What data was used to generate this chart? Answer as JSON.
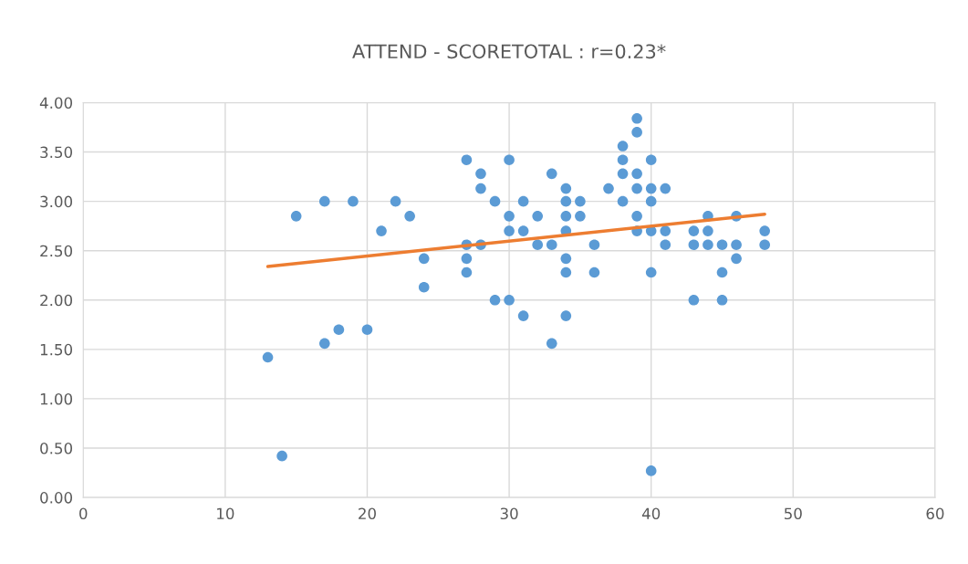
{
  "chart_data": {
    "type": "scatter",
    "title": "ATTEND - SCORETOTAL : r=0.23*",
    "xlim": [
      0,
      60
    ],
    "xticks": [
      0,
      10,
      20,
      30,
      40,
      50,
      60
    ],
    "ylim": [
      0,
      4
    ],
    "yticks": [
      {
        "value": 0,
        "label": "0.00"
      },
      {
        "value": 0.5,
        "label": "0.50"
      },
      {
        "value": 1,
        "label": "1.00"
      },
      {
        "value": 1.5,
        "label": "1.50"
      },
      {
        "value": 2,
        "label": "2.00"
      },
      {
        "value": 2.5,
        "label": "2.50"
      },
      {
        "value": 3,
        "label": "3.00"
      },
      {
        "value": 3.5,
        "label": "3.50"
      },
      {
        "value": 4,
        "label": "4.00"
      }
    ],
    "grid": true,
    "legend": false,
    "series": [
      {
        "marker": "circle",
        "color": "#5b9bd5",
        "x": [
          13,
          14,
          15,
          17,
          17,
          18,
          19,
          20,
          21,
          22,
          23,
          24,
          24,
          27,
          27,
          27,
          27,
          28,
          28,
          28,
          29,
          29,
          30,
          30,
          30,
          30,
          31,
          31,
          31,
          32,
          32,
          33,
          33,
          33,
          34,
          34,
          34,
          34,
          34,
          34,
          34,
          35,
          35,
          36,
          36,
          37,
          38,
          38,
          38,
          38,
          39,
          39,
          39,
          39,
          39,
          39,
          40,
          40,
          40,
          40,
          40,
          40,
          41,
          41,
          41,
          43,
          43,
          43,
          44,
          44,
          44,
          45,
          45,
          45,
          46,
          46,
          46,
          48,
          48
        ],
        "values": [
          1.42,
          0.42,
          2.85,
          3.0,
          1.56,
          1.7,
          3.0,
          1.7,
          2.7,
          3.0,
          2.85,
          2.42,
          2.13,
          3.42,
          2.56,
          2.42,
          2.28,
          3.28,
          3.13,
          2.56,
          3.0,
          2.0,
          3.42,
          2.85,
          2.7,
          2.0,
          3.0,
          2.7,
          1.84,
          2.85,
          2.56,
          3.28,
          2.56,
          1.56,
          3.13,
          3.0,
          2.85,
          2.7,
          2.42,
          2.28,
          1.84,
          3.0,
          2.85,
          2.56,
          2.28,
          3.13,
          3.56,
          3.42,
          3.28,
          3.0,
          3.84,
          3.7,
          3.28,
          3.13,
          2.85,
          2.7,
          3.42,
          3.13,
          3.0,
          2.7,
          2.28,
          0.27,
          3.13,
          2.7,
          2.56,
          2.7,
          2.56,
          2.0,
          2.85,
          2.7,
          2.56,
          2.56,
          2.28,
          2.0,
          2.85,
          2.56,
          2.42,
          2.7,
          2.56
        ]
      },
      {
        "type": "line",
        "color": "#ed7d31",
        "x": [
          13,
          48
        ],
        "values": [
          2.34,
          2.87
        ],
        "marker": "none",
        "line_style": "solid"
      }
    ]
  }
}
